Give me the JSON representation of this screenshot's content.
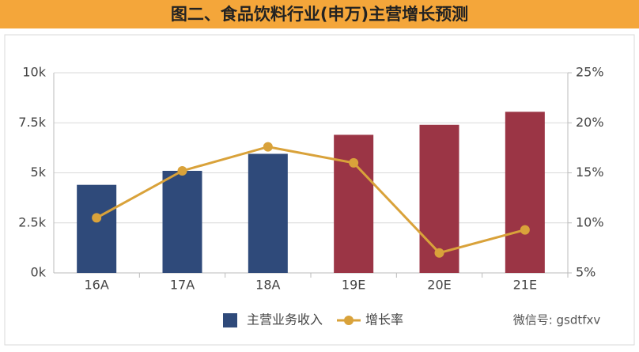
{
  "chart_data": {
    "type": "bar-line",
    "title": "图二、食品饮料行业(申万)主营增长预测",
    "categories": [
      "16A",
      "17A",
      "18A",
      "19E",
      "20E",
      "21E"
    ],
    "series": [
      {
        "name": "主营业务收入",
        "type": "bar",
        "color": "#2f4a7a",
        "colors": [
          "#2f4a7a",
          "#2f4a7a",
          "#2f4a7a",
          "#9b3545",
          "#9b3545",
          "#9b3545"
        ],
        "values": [
          4400,
          5100,
          5950,
          6900,
          7400,
          8050
        ]
      },
      {
        "name": "增长率",
        "type": "line",
        "axis": "y2",
        "color": "#d9a23a",
        "values": [
          10.5,
          15.2,
          17.6,
          16.0,
          7.0,
          9.3
        ]
      }
    ],
    "ylim": [
      0,
      10000
    ],
    "yticks": [
      {
        "value": 0,
        "label": "0k"
      },
      {
        "value": 2500,
        "label": "2.5k"
      },
      {
        "value": 5000,
        "label": "5k"
      },
      {
        "value": 7500,
        "label": "7.5k"
      },
      {
        "value": 10000,
        "label": "10k"
      }
    ],
    "y2lim": [
      5,
      25
    ],
    "y2ticks": [
      {
        "value": 5,
        "label": "5%"
      },
      {
        "value": 10,
        "label": "10%"
      },
      {
        "value": 15,
        "label": "15%"
      },
      {
        "value": 20,
        "label": "20%"
      },
      {
        "value": 25,
        "label": "25%"
      }
    ],
    "grid": true,
    "legend": "bottom",
    "watermark": "微信号: gsdtfxv"
  }
}
